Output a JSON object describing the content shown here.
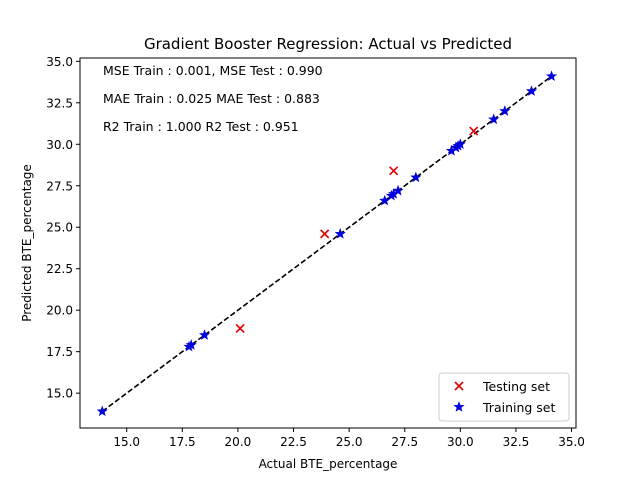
{
  "chart_data": {
    "type": "scatter",
    "title": "Gradient Booster Regression: Actual vs Predicted",
    "xlabel": "Actual BTE_percentage",
    "ylabel": "Predicted BTE_percentage",
    "xlim": [
      12.9,
      35.2
    ],
    "ylim": [
      12.9,
      35.2
    ],
    "xticks": [
      "15.0",
      "17.5",
      "20.0",
      "22.5",
      "25.0",
      "27.5",
      "30.0",
      "32.5",
      "35.0"
    ],
    "yticks": [
      "15.0",
      "17.5",
      "20.0",
      "22.5",
      "25.0",
      "27.5",
      "30.0",
      "32.5",
      "35.0"
    ],
    "grid": false,
    "legend_position": "bottom-right",
    "annotations": [
      "MSE Train : 0.001, MSE Test  : 0.990",
      "MAE Train  : 0.025 MAE Test  : 0.883",
      "R2 Train  : 1.000 R2 Test  : 0.951"
    ],
    "reference_line": {
      "style": "dashed",
      "color": "#000000",
      "from": [
        13.9,
        13.9
      ],
      "to": [
        34.1,
        34.1
      ]
    },
    "series": [
      {
        "name": "Testing set",
        "marker": "x",
        "color": "#e00000",
        "points": [
          [
            20.1,
            18.9
          ],
          [
            23.9,
            24.6
          ],
          [
            27.0,
            28.4
          ],
          [
            30.6,
            30.8
          ]
        ]
      },
      {
        "name": "Training set",
        "marker": "star",
        "color": "#0000dd",
        "points": [
          [
            13.9,
            13.9
          ],
          [
            17.8,
            17.8
          ],
          [
            17.9,
            17.9
          ],
          [
            18.5,
            18.5
          ],
          [
            24.6,
            24.6
          ],
          [
            26.6,
            26.6
          ],
          [
            26.9,
            26.9
          ],
          [
            27.0,
            27.0
          ],
          [
            27.2,
            27.2
          ],
          [
            28.0,
            28.0
          ],
          [
            29.6,
            29.6
          ],
          [
            29.8,
            29.8
          ],
          [
            29.9,
            29.9
          ],
          [
            30.0,
            30.0
          ],
          [
            31.5,
            31.5
          ],
          [
            32.0,
            32.0
          ],
          [
            33.2,
            33.2
          ],
          [
            34.1,
            34.1
          ]
        ]
      }
    ]
  }
}
